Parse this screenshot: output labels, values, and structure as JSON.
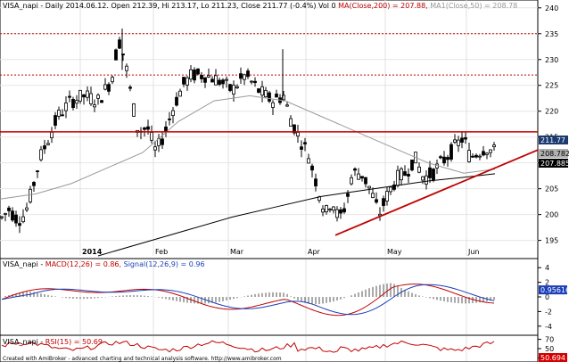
{
  "main_pane": {
    "header_symbol": "VISA_napi",
    "header_text": " - Daily 2014.06.12. Open 212.39, Hi 213.17, Lo 211.23, Close 211.77 (-0.4%) Vol 0 ",
    "ma200_text": "MA(Close,200) = 207.88,",
    "ma50_text": " MA1(Close,50) = 208.78",
    "y_ticks": [
      "240",
      "235",
      "230",
      "225",
      "220",
      "215",
      "210",
      "205",
      "200",
      "195"
    ],
    "x_labels": [
      "2014",
      "Feb",
      "Mar",
      "Apr",
      "May",
      "Jun"
    ],
    "price_labels": [
      {
        "text": "211.77",
        "bg": "#1c3a6e",
        "fg": "#ffffff",
        "y_value": 211.77
      },
      {
        "text": "208.782",
        "bg": "#b0b0b0",
        "fg": "#000000",
        "y_value": 208.78
      },
      {
        "text": "207.885",
        "bg": "#000000",
        "fg": "#ffffff",
        "y_value": 207.88
      }
    ]
  },
  "macd_pane": {
    "header_symbol": "VISA_napi",
    "header_text": " - ",
    "macd_text": "MACD(12,26) = 0.86,",
    "signal_text": " Signal(12,26,9) = 0.96",
    "y_ticks": [
      "4",
      "2",
      "0",
      "-2",
      "-4"
    ],
    "value_label": "0.95616",
    "value_bg": "#1a3fb8"
  },
  "rsi_pane": {
    "header_symbol": "VISA_napi",
    "header_text": " - ",
    "rsi_text": "RSI(15) = 50.69",
    "y_ticks": [
      "70",
      "50",
      "30"
    ],
    "value_label": "50.694",
    "value_bg": "#d40000"
  },
  "footer": "Created with AmiBroker - advanced charting and technical analysis software. http://www.amibroker.com",
  "colors": {
    "candle": "#000000",
    "ma50": "#999999",
    "ma200": "#000000",
    "resistance": "#c00000",
    "support": "#c00000",
    "macd": "#c00000",
    "signal": "#1a3fb8",
    "rsi": "#c00000",
    "dotted_levels": "#c00000"
  },
  "chart_data": {
    "type": "candlestick",
    "y_range": [
      192,
      241
    ],
    "resistance_level": 216,
    "dotted_levels": [
      235,
      227
    ],
    "macd_range": [
      -5,
      5
    ],
    "rsi_range": [
      25,
      75
    ]
  }
}
